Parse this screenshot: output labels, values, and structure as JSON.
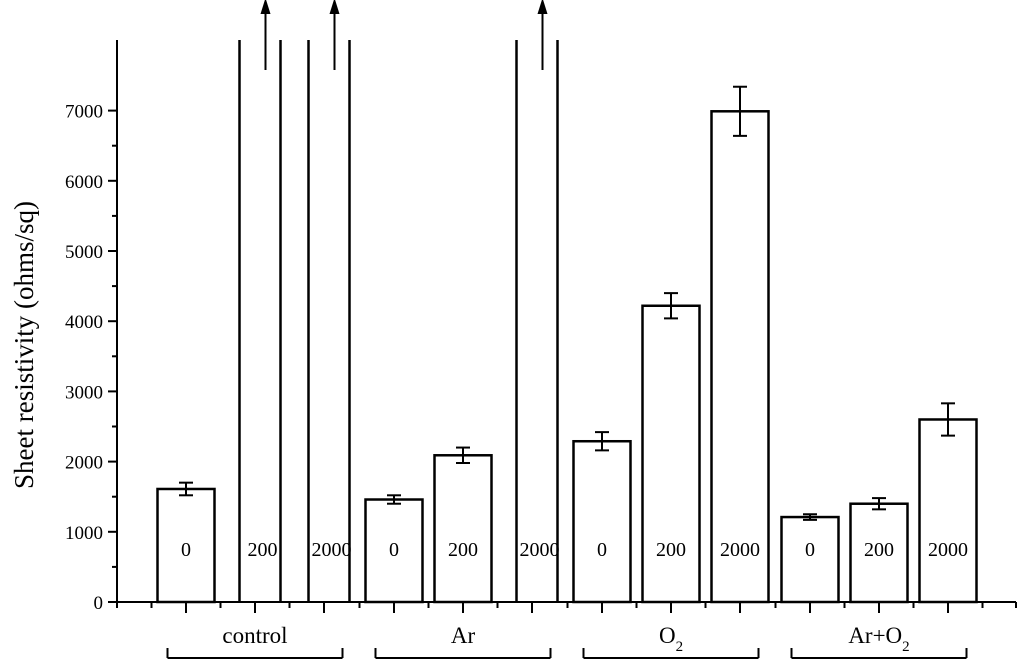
{
  "chart_data": {
    "type": "bar",
    "title": "",
    "xlabel": "",
    "ylabel": "Sheet resistivity (ohms/sq)",
    "ylim": [
      0,
      7500
    ],
    "yticks": [
      0,
      1000,
      2000,
      3000,
      4000,
      5000,
      6000,
      7000
    ],
    "grid": false,
    "legend": "none",
    "groups": [
      {
        "label": "control",
        "base": "",
        "subscript": "",
        "tail": ""
      },
      {
        "label": "Ar",
        "base": "",
        "subscript": "",
        "tail": ""
      },
      {
        "label": "",
        "base": "O",
        "subscript": "2",
        "tail": ""
      },
      {
        "label": "",
        "base": "Ar+O",
        "subscript": "2",
        "tail": ""
      }
    ],
    "bars": [
      {
        "group": 0,
        "label": "0",
        "value": 1610,
        "error": 90,
        "off_scale": false
      },
      {
        "group": 0,
        "label": "200",
        "value": null,
        "error": null,
        "off_scale": true
      },
      {
        "group": 0,
        "label": "2000",
        "value": null,
        "error": null,
        "off_scale": true
      },
      {
        "group": 1,
        "label": "0",
        "value": 1460,
        "error": 60,
        "off_scale": false
      },
      {
        "group": 1,
        "label": "200",
        "value": 2090,
        "error": 110,
        "off_scale": false
      },
      {
        "group": 1,
        "label": "2000",
        "value": null,
        "error": null,
        "off_scale": true
      },
      {
        "group": 2,
        "label": "0",
        "value": 2290,
        "error": 130,
        "off_scale": false
      },
      {
        "group": 2,
        "label": "200",
        "value": 4220,
        "error": 180,
        "off_scale": false
      },
      {
        "group": 2,
        "label": "2000",
        "value": 6990,
        "error": 350,
        "off_scale": false
      },
      {
        "group": 3,
        "label": "0",
        "value": 1210,
        "error": 40,
        "off_scale": false
      },
      {
        "group": 3,
        "label": "200",
        "value": 1400,
        "error": 80,
        "off_scale": false
      },
      {
        "group": 3,
        "label": "2000",
        "value": 2600,
        "error": 230,
        "off_scale": false
      }
    ],
    "colors": {
      "bar_fill": "#ffffff",
      "stroke": "#000000"
    }
  }
}
